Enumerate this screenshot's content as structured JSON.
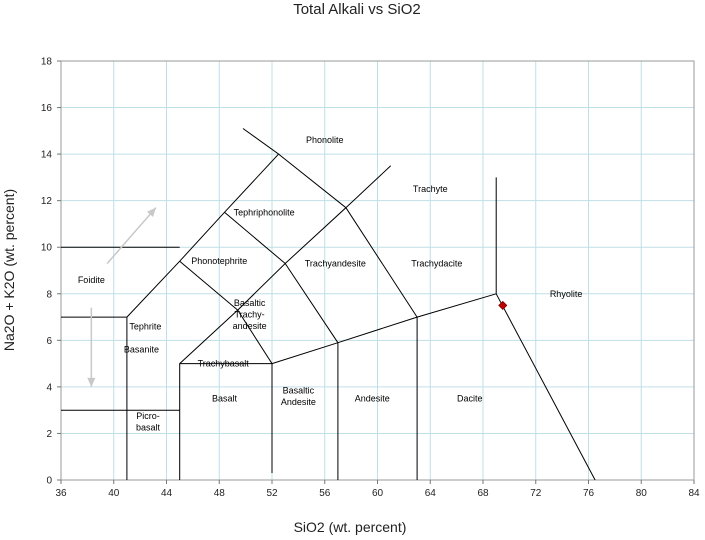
{
  "chart_data": {
    "type": "scatter",
    "title": "Total Alkali vs SiO2",
    "xlabel": "SiO2 (wt. percent)",
    "ylabel": "Na2O + K2O (wt. percent)",
    "xlim": [
      36,
      84
    ],
    "ylim": [
      0,
      18
    ],
    "x_ticks": [
      36,
      40,
      44,
      48,
      52,
      56,
      60,
      64,
      68,
      72,
      76,
      80,
      84
    ],
    "y_ticks": [
      0,
      2,
      4,
      6,
      8,
      10,
      12,
      14,
      16,
      18
    ],
    "grid": true,
    "gridline_color": "#bfdfe6",
    "boundary_color": "#000000",
    "series": [
      {
        "x": [
          69.5
        ],
        "y": [
          7.5
        ],
        "color": "#c00000",
        "marker": "diamond"
      }
    ],
    "field_labels": [
      {
        "lines": [
          "Phonolite"
        ],
        "x": 56,
        "y": 14.6
      },
      {
        "lines": [
          "Trachyte"
        ],
        "x": 64.0,
        "y": 12.5
      },
      {
        "lines": [
          "Tephriphonolite"
        ],
        "x": 51.4,
        "y": 11.5
      },
      {
        "lines": [
          "Phonotephrite"
        ],
        "x": 48.0,
        "y": 9.4
      },
      {
        "lines": [
          "Trachyandesite"
        ],
        "x": 56.8,
        "y": 9.3
      },
      {
        "lines": [
          "Trachydacite"
        ],
        "x": 64.5,
        "y": 9.3
      },
      {
        "lines": [
          "Foidite"
        ],
        "x": 38.3,
        "y": 8.6
      },
      {
        "lines": [
          "Rhyolite"
        ],
        "x": 74.3,
        "y": 8.0
      },
      {
        "lines": [
          "Basaltic",
          "Trachy-",
          "andesite"
        ],
        "x": 50.3,
        "y": 7.1
      },
      {
        "lines": [
          "Tephrite"
        ],
        "x": 42.4,
        "y": 6.6
      },
      {
        "lines": [
          "Basanite"
        ],
        "x": 42.1,
        "y": 5.6
      },
      {
        "lines": [
          "Trachybasalt"
        ],
        "x": 48.3,
        "y": 5.0
      },
      {
        "lines": [
          "Basalt"
        ],
        "x": 48.4,
        "y": 3.5
      },
      {
        "lines": [
          "Basaltic",
          "Andesite"
        ],
        "x": 54.0,
        "y": 3.6
      },
      {
        "lines": [
          "Andesite"
        ],
        "x": 59.6,
        "y": 3.5
      },
      {
        "lines": [
          "Dacite"
        ],
        "x": 67.0,
        "y": 3.5
      },
      {
        "lines": [
          "Picro-",
          "basalt"
        ],
        "x": 42.6,
        "y": 2.5
      }
    ],
    "boundary_lines": [
      [
        [
          41,
          0
        ],
        [
          41,
          7
        ],
        [
          45,
          9.4
        ],
        [
          48.4,
          11.5
        ],
        [
          52.5,
          14
        ],
        [
          49.8,
          15.1
        ]
      ],
      [
        [
          52.5,
          14
        ],
        [
          57.6,
          11.7
        ],
        [
          61,
          13.5
        ]
      ],
      [
        [
          36,
          10
        ],
        [
          45,
          10
        ]
      ],
      [
        [
          36,
          7
        ],
        [
          41,
          7
        ]
      ],
      [
        [
          36,
          3
        ],
        [
          45,
          3
        ]
      ],
      [
        [
          45,
          9.4
        ],
        [
          49.4,
          7.3
        ],
        [
          45,
          5
        ],
        [
          45,
          0
        ]
      ],
      [
        [
          48.4,
          11.5
        ],
        [
          53,
          9.3
        ],
        [
          57.6,
          11.7
        ],
        [
          63,
          7
        ],
        [
          63,
          0
        ]
      ],
      [
        [
          49.4,
          7.3
        ],
        [
          53,
          9.3
        ],
        [
          57,
          5.9
        ],
        [
          57,
          0
        ]
      ],
      [
        [
          45,
          5
        ],
        [
          52,
          5
        ],
        [
          49.4,
          7.3
        ]
      ],
      [
        [
          52,
          5
        ],
        [
          57,
          5.9
        ],
        [
          63,
          7
        ],
        [
          69,
          8
        ],
        [
          69,
          13
        ]
      ],
      [
        [
          52,
          0.3
        ],
        [
          52,
          5
        ]
      ],
      [
        [
          69,
          8
        ],
        [
          76.5,
          0
        ]
      ]
    ],
    "arrows": [
      {
        "from": [
          39.5,
          9.3
        ],
        "to": [
          43.2,
          11.7
        ]
      },
      {
        "from": [
          38.3,
          7.4
        ],
        "to": [
          38.3,
          4.0
        ]
      }
    ]
  }
}
